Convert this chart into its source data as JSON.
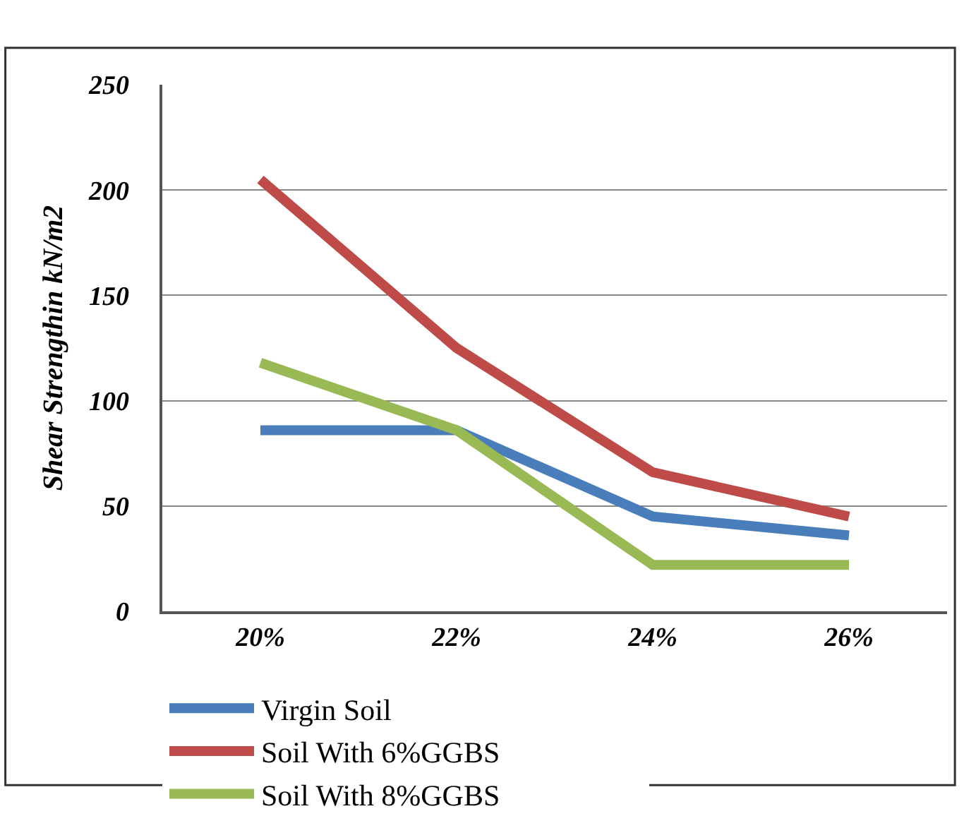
{
  "chart_data": {
    "type": "line",
    "ylabel": "Shear Strengthin kN/m2",
    "categories": [
      "20%",
      "22%",
      "24%",
      "26%"
    ],
    "series": [
      {
        "name": "Virgin Soil",
        "color": "#4a7ebb",
        "values": [
          86,
          86,
          45,
          36
        ]
      },
      {
        "name": "Soil With 6%GGBS",
        "color": "#be4b48",
        "values": [
          205,
          125,
          66,
          45
        ]
      },
      {
        "name": "Soil With 8%GGBS",
        "color": "#98b954",
        "values": [
          118,
          86,
          22,
          22
        ]
      }
    ],
    "ylim": [
      0,
      250
    ],
    "yticks": [
      0,
      50,
      100,
      150,
      200,
      250
    ],
    "grid": "y",
    "legend": "bottom",
    "marker": "none",
    "line_style": "solid"
  }
}
